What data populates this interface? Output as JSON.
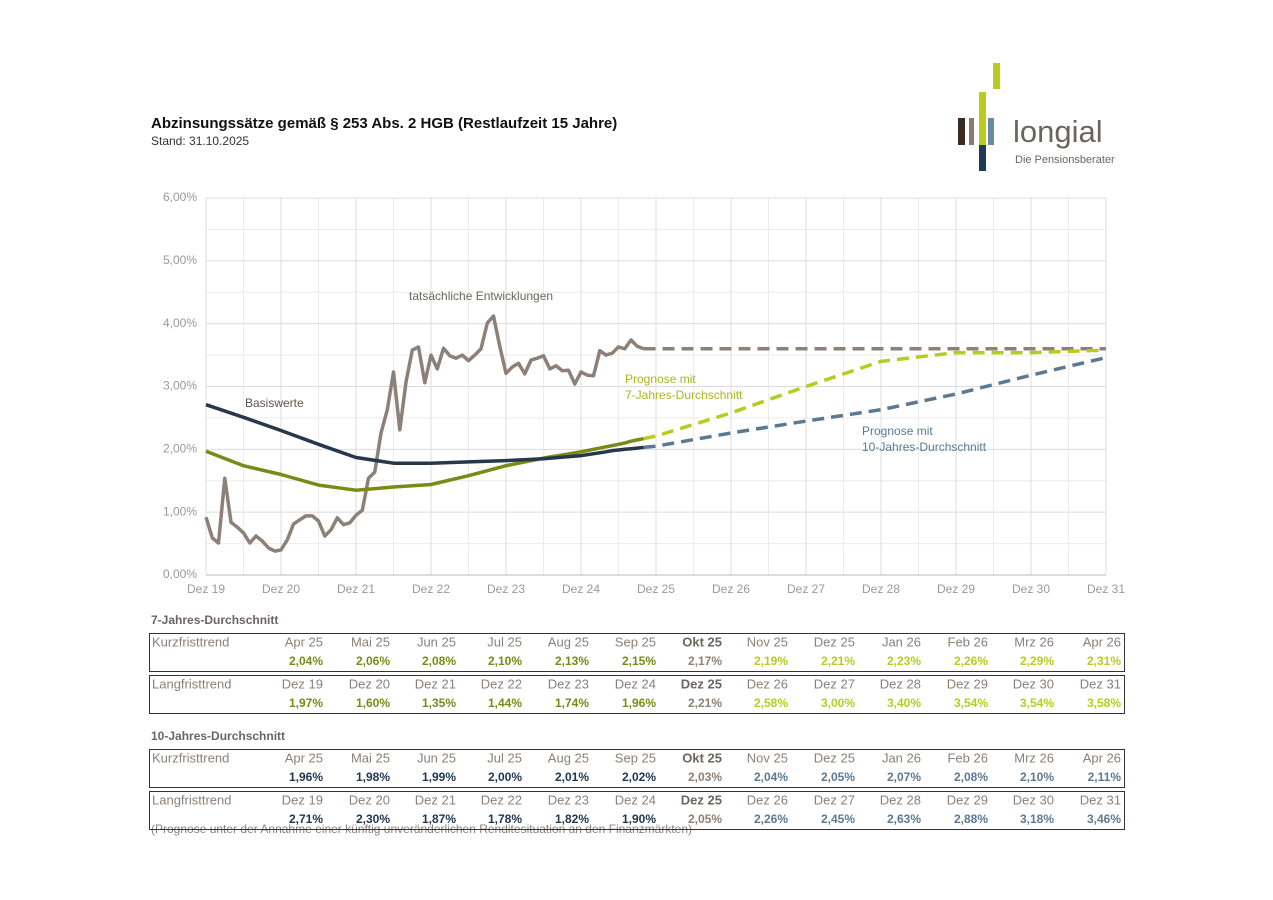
{
  "header": {
    "title": "Abzinsungssätze gemäß § 253 Abs. 2 HGB (Restlaufzeit 15 Jahre)",
    "subtitle": "Stand: 31.10.2025"
  },
  "logo": {
    "name": "longial",
    "tagline": "Die Pensionsberater"
  },
  "chart_data": {
    "type": "line",
    "xlim": [
      "2019-12",
      "2031-12"
    ],
    "xticks": [
      {
        "value": "2019-12",
        "label": "Dez 19"
      },
      {
        "value": "2020-12",
        "label": "Dez 20"
      },
      {
        "value": "2021-12",
        "label": "Dez 21"
      },
      {
        "value": "2022-12",
        "label": "Dez 22"
      },
      {
        "value": "2023-12",
        "label": "Dez 23"
      },
      {
        "value": "2024-12",
        "label": "Dez 24"
      },
      {
        "value": "2025-12",
        "label": "Dez 25"
      },
      {
        "value": "2026-12",
        "label": "Dez 26"
      },
      {
        "value": "2027-12",
        "label": "Dez 27"
      },
      {
        "value": "2028-12",
        "label": "Dez 28"
      },
      {
        "value": "2029-12",
        "label": "Dez 29"
      },
      {
        "value": "2030-12",
        "label": "Dez 30"
      },
      {
        "value": "2031-12",
        "label": "Dez 31"
      }
    ],
    "x_minor_ticks": [
      "2020-06",
      "2021-06",
      "2022-06",
      "2023-06",
      "2024-06",
      "2025-06",
      "2026-06",
      "2027-06",
      "2028-06",
      "2029-06",
      "2030-06",
      "2031-06"
    ],
    "ylim": [
      0,
      6
    ],
    "yticks": [
      {
        "value": 0,
        "label": "0,00%"
      },
      {
        "value": 1,
        "label": "1,00%"
      },
      {
        "value": 2,
        "label": "2,00%"
      },
      {
        "value": 3,
        "label": "3,00%"
      },
      {
        "value": 4,
        "label": "4,00%"
      },
      {
        "value": 5,
        "label": "5,00%"
      },
      {
        "value": 6,
        "label": "6,00%"
      }
    ],
    "y_minor_ticks": [
      0.5,
      1.5,
      2.5,
      3.5,
      4.5,
      5.5
    ],
    "grid": true,
    "series": [
      {
        "color": "#8c8078",
        "dashed": true,
        "x": [
          "2025-10",
          "2031-12"
        ],
        "values": [
          3.6,
          3.6
        ]
      },
      {
        "color": "#5b7a92",
        "dashed": true,
        "x": [
          "2025-10",
          "2025-12",
          "2026-12",
          "2027-12",
          "2028-12",
          "2029-12",
          "2030-12",
          "2031-12"
        ],
        "values": [
          2.03,
          2.05,
          2.26,
          2.45,
          2.63,
          2.88,
          3.18,
          3.46
        ]
      },
      {
        "color": "#b8cc1e",
        "dashed": true,
        "x": [
          "2025-10",
          "2025-12",
          "2026-12",
          "2027-12",
          "2028-12",
          "2029-12",
          "2030-12",
          "2031-12"
        ],
        "values": [
          2.17,
          2.21,
          2.58,
          3.0,
          3.4,
          3.54,
          3.54,
          3.58
        ]
      },
      {
        "color": "#8c8078",
        "dashed": false,
        "x": [
          "2019-12",
          "2020-01",
          "2020-02",
          "2020-03",
          "2020-04",
          "2020-05",
          "2020-06",
          "2020-07",
          "2020-08",
          "2020-09",
          "2020-10",
          "2020-11",
          "2020-12",
          "2021-01",
          "2021-02",
          "2021-03",
          "2021-04",
          "2021-05",
          "2021-06",
          "2021-07",
          "2021-08",
          "2021-09",
          "2021-10",
          "2021-11",
          "2021-12",
          "2022-01",
          "2022-02",
          "2022-03",
          "2022-04",
          "2022-05",
          "2022-06",
          "2022-07",
          "2022-08",
          "2022-09",
          "2022-10",
          "2022-11",
          "2022-12",
          "2023-01",
          "2023-02",
          "2023-03",
          "2023-04",
          "2023-05",
          "2023-06",
          "2023-07",
          "2023-08",
          "2023-09",
          "2023-10",
          "2023-11",
          "2023-12",
          "2024-01",
          "2024-02",
          "2024-03",
          "2024-04",
          "2024-05",
          "2024-06",
          "2024-07",
          "2024-08",
          "2024-09",
          "2024-10",
          "2024-11",
          "2024-12",
          "2025-01",
          "2025-02",
          "2025-03",
          "2025-04",
          "2025-05",
          "2025-06",
          "2025-07",
          "2025-08",
          "2025-09",
          "2025-10"
        ],
        "values": [
          0.92,
          0.59,
          0.51,
          1.54,
          0.84,
          0.76,
          0.67,
          0.51,
          0.62,
          0.54,
          0.43,
          0.38,
          0.4,
          0.56,
          0.81,
          0.88,
          0.94,
          0.94,
          0.86,
          0.62,
          0.72,
          0.91,
          0.8,
          0.83,
          0.95,
          1.03,
          1.54,
          1.64,
          2.26,
          2.63,
          3.23,
          2.31,
          3.07,
          3.58,
          3.63,
          3.06,
          3.5,
          3.28,
          3.61,
          3.49,
          3.45,
          3.5,
          3.41,
          3.5,
          3.6,
          4.01,
          4.12,
          3.64,
          3.21,
          3.31,
          3.37,
          3.2,
          3.42,
          3.45,
          3.49,
          3.28,
          3.33,
          3.25,
          3.26,
          3.04,
          3.23,
          3.18,
          3.17,
          3.57,
          3.5,
          3.53,
          3.63,
          3.6,
          3.74,
          3.64,
          3.6
        ]
      },
      {
        "color": "#7b8a17",
        "dashed": false,
        "x": [
          "2019-12",
          "2020-06",
          "2020-12",
          "2021-06",
          "2021-12",
          "2022-06",
          "2022-12",
          "2023-06",
          "2023-12",
          "2024-06",
          "2024-12",
          "2025-04",
          "2025-05",
          "2025-06",
          "2025-07",
          "2025-08",
          "2025-09",
          "2025-10"
        ],
        "values": [
          1.97,
          1.74,
          1.6,
          1.43,
          1.35,
          1.4,
          1.44,
          1.58,
          1.74,
          1.86,
          1.96,
          2.04,
          2.06,
          2.08,
          2.1,
          2.13,
          2.15,
          2.17
        ]
      },
      {
        "color": "#27384a",
        "dashed": false,
        "x": [
          "2019-12",
          "2020-06",
          "2020-12",
          "2021-06",
          "2021-12",
          "2022-06",
          "2022-12",
          "2023-06",
          "2023-12",
          "2024-06",
          "2024-12",
          "2025-04",
          "2025-05",
          "2025-06",
          "2025-07",
          "2025-08",
          "2025-09",
          "2025-10"
        ],
        "values": [
          2.71,
          2.51,
          2.3,
          2.08,
          1.87,
          1.78,
          1.78,
          1.8,
          1.82,
          1.85,
          1.9,
          1.96,
          1.98,
          1.99,
          2.0,
          2.01,
          2.02,
          2.03
        ]
      }
    ],
    "annotations": [
      {
        "lines": [
          "tatsächliche Entwicklungen"
        ],
        "color": "#6b6560"
      },
      {
        "lines": [
          "Basiswerte"
        ],
        "color": "#5a534e"
      },
      {
        "lines": [
          "Prognose mit",
          "7-Jahres-Durchschnitt"
        ],
        "color": "#a7b81c"
      },
      {
        "lines": [
          "Prognose mit",
          "10-Jahres-Durchschnitt"
        ],
        "color": "#5b7a92"
      }
    ]
  },
  "tables": [
    {
      "title": "7-Jahres-Durchschnitt",
      "colors": {
        "past": "#7b8a17",
        "current": "#8c8078",
        "forecast": "#b8cc1e"
      },
      "rows": [
        {
          "label": "Kurzfristtrend",
          "headers": [
            "Apr 25",
            "Mai 25",
            "Jun 25",
            "Jul 25",
            "Aug 25",
            "Sep 25",
            "Okt 25",
            "Nov 25",
            "Dez 25",
            "Jan 26",
            "Feb 26",
            "Mrz 26",
            "Apr 26"
          ],
          "values": [
            "2,04%",
            "2,06%",
            "2,08%",
            "2,10%",
            "2,13%",
            "2,15%",
            "2,17%",
            "2,19%",
            "2,21%",
            "2,23%",
            "2,26%",
            "2,29%",
            "2,31%"
          ],
          "styles": [
            "past",
            "past",
            "past",
            "past",
            "past",
            "past",
            "current",
            "forecast",
            "forecast",
            "forecast",
            "forecast",
            "forecast",
            "forecast"
          ]
        },
        {
          "label": "Langfristtrend",
          "headers": [
            "Dez 19",
            "Dez 20",
            "Dez 21",
            "Dez 22",
            "Dez 23",
            "Dez 24",
            "Dez 25",
            "Dez 26",
            "Dez 27",
            "Dez 28",
            "Dez 29",
            "Dez 30",
            "Dez 31"
          ],
          "values": [
            "1,97%",
            "1,60%",
            "1,35%",
            "1,44%",
            "1,74%",
            "1,96%",
            "2,21%",
            "2,58%",
            "3,00%",
            "3,40%",
            "3,54%",
            "3,54%",
            "3,58%"
          ],
          "styles": [
            "past",
            "past",
            "past",
            "past",
            "past",
            "past",
            "current",
            "forecast",
            "forecast",
            "forecast",
            "forecast",
            "forecast",
            "forecast"
          ]
        }
      ]
    },
    {
      "title": "10-Jahres-Durchschnitt",
      "colors": {
        "past": "#1f3550",
        "current": "#8c8078",
        "forecast": "#5b7a92"
      },
      "rows": [
        {
          "label": "Kurzfristtrend",
          "headers": [
            "Apr 25",
            "Mai 25",
            "Jun 25",
            "Jul 25",
            "Aug 25",
            "Sep 25",
            "Okt 25",
            "Nov 25",
            "Dez 25",
            "Jan 26",
            "Feb 26",
            "Mrz 26",
            "Apr 26"
          ],
          "values": [
            "1,96%",
            "1,98%",
            "1,99%",
            "2,00%",
            "2,01%",
            "2,02%",
            "2,03%",
            "2,04%",
            "2,05%",
            "2,07%",
            "2,08%",
            "2,10%",
            "2,11%"
          ],
          "styles": [
            "past",
            "past",
            "past",
            "past",
            "past",
            "past",
            "current",
            "forecast",
            "forecast",
            "forecast",
            "forecast",
            "forecast",
            "forecast"
          ]
        },
        {
          "label": "Langfristtrend",
          "headers": [
            "Dez 19",
            "Dez 20",
            "Dez 21",
            "Dez 22",
            "Dez 23",
            "Dez 24",
            "Dez 25",
            "Dez 26",
            "Dez 27",
            "Dez 28",
            "Dez 29",
            "Dez 30",
            "Dez 31"
          ],
          "values": [
            "2,71%",
            "2,30%",
            "1,87%",
            "1,78%",
            "1,82%",
            "1,90%",
            "2,05%",
            "2,26%",
            "2,45%",
            "2,63%",
            "2,88%",
            "3,18%",
            "3,46%"
          ],
          "styles": [
            "past",
            "past",
            "past",
            "past",
            "past",
            "past",
            "current",
            "forecast",
            "forecast",
            "forecast",
            "forecast",
            "forecast",
            "forecast"
          ]
        }
      ]
    }
  ],
  "footnote": "(Prognose unter der Annahme einer künftig unveränderlichen Renditesituation an den Finanzmärkten)"
}
